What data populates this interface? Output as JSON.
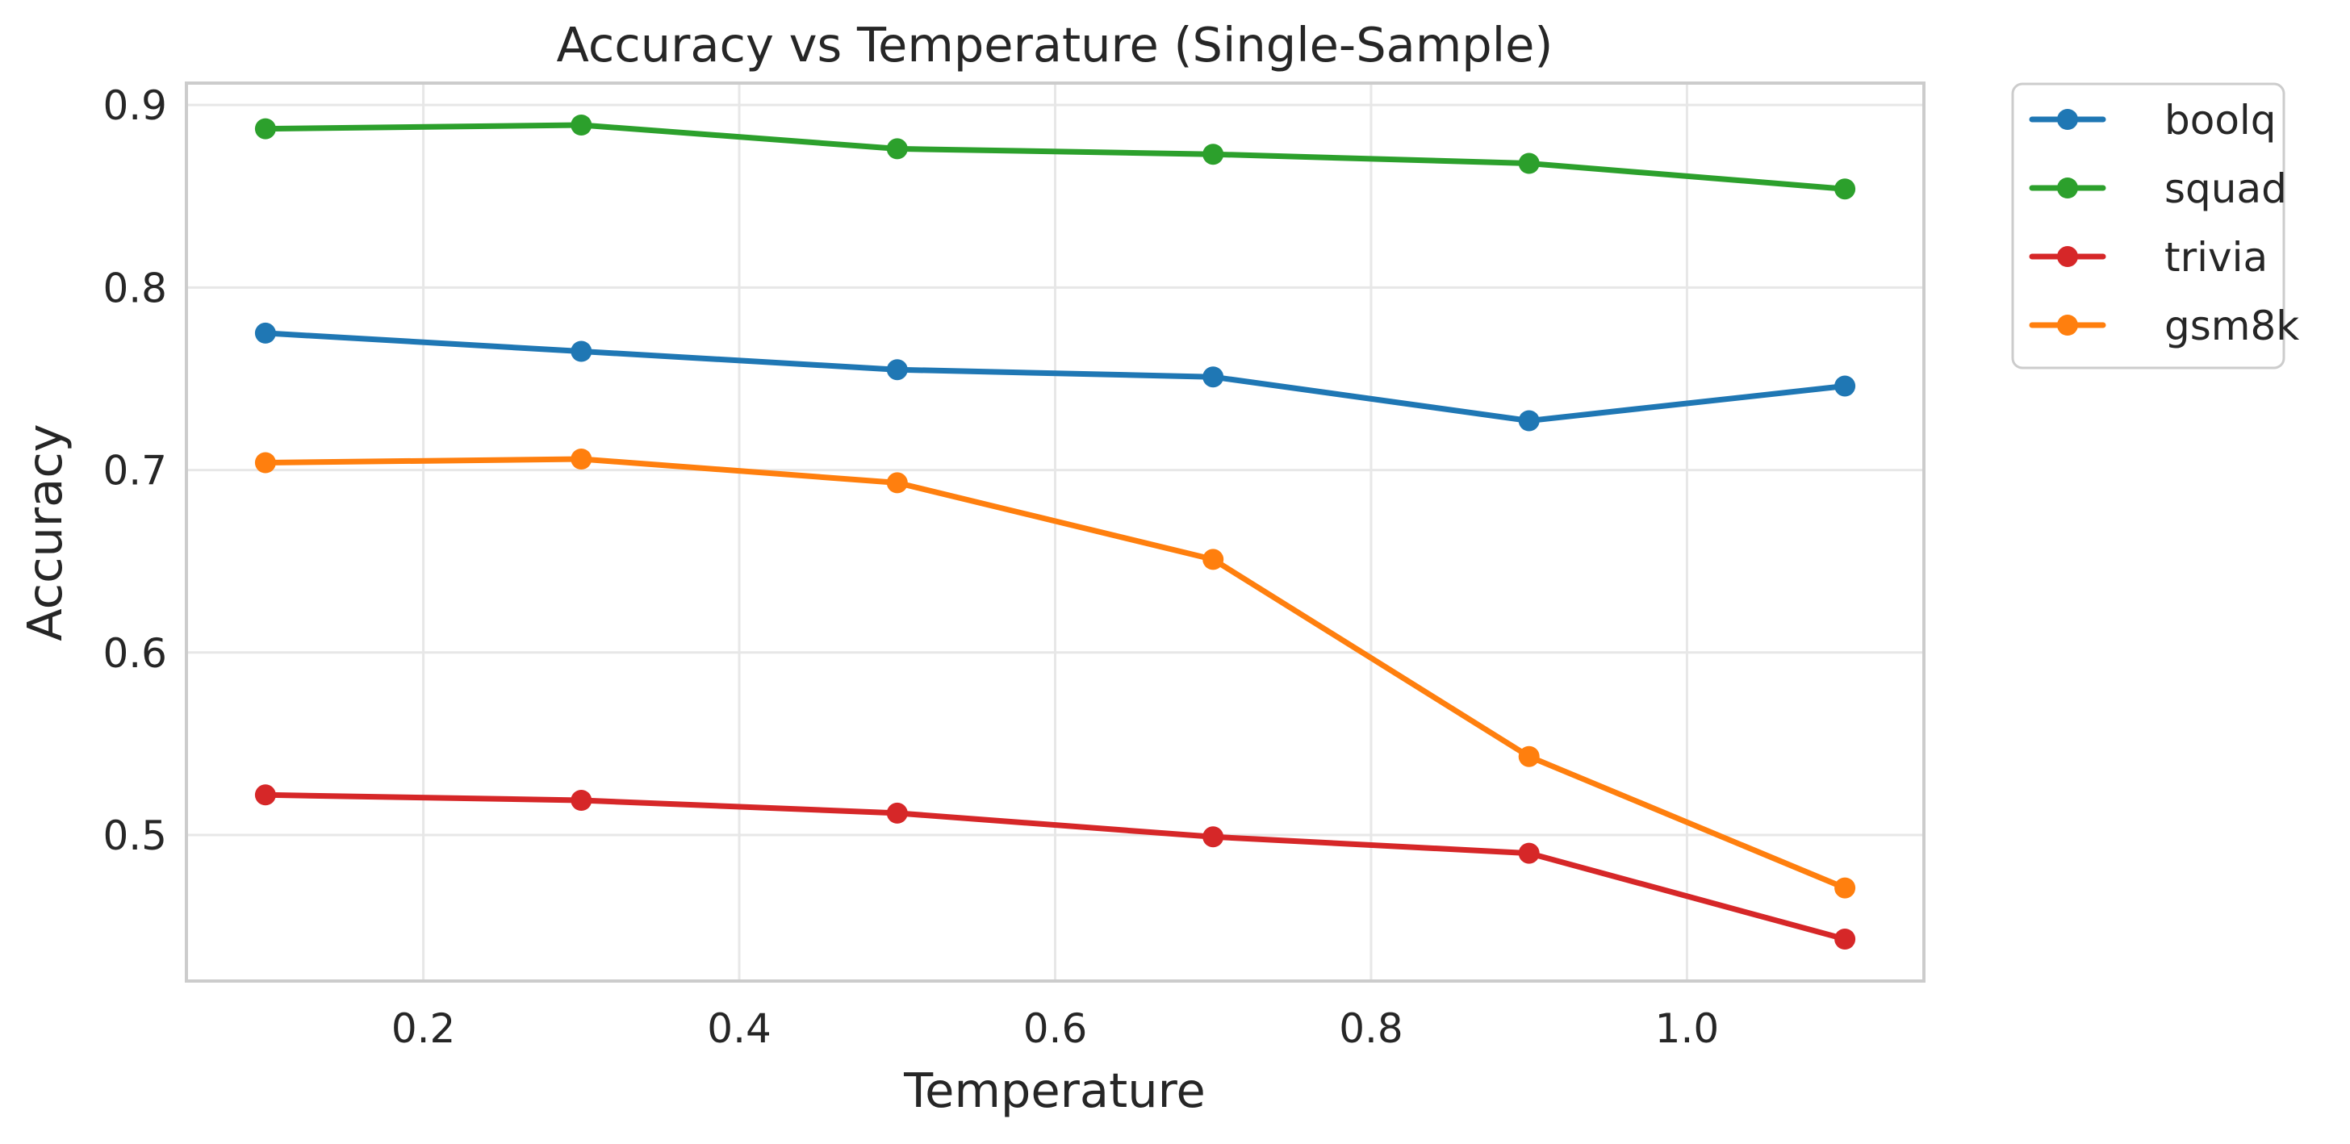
{
  "chart_data": {
    "type": "line",
    "title": "Accuracy vs Temperature (Single-Sample)",
    "xlabel": "Temperature",
    "ylabel": "Accuracy",
    "x": [
      0.1,
      0.3,
      0.5,
      0.7,
      0.9,
      1.1
    ],
    "xlim": [
      0.05,
      1.15
    ],
    "ylim": [
      0.42,
      0.912
    ],
    "xticks": [
      0.2,
      0.4,
      0.6,
      0.8,
      1.0
    ],
    "xtick_labels": [
      "0.2",
      "0.4",
      "0.6",
      "0.8",
      "1.0"
    ],
    "yticks": [
      0.5,
      0.6,
      0.7,
      0.8,
      0.9
    ],
    "ytick_labels": [
      "0.5",
      "0.6",
      "0.7",
      "0.8",
      "0.9"
    ],
    "grid": true,
    "legend_position": "outside-top-right",
    "series": [
      {
        "name": "boolq",
        "color": "#1f77b4",
        "values": [
          0.775,
          0.765,
          0.755,
          0.751,
          0.727,
          0.746
        ]
      },
      {
        "name": "squad",
        "color": "#2ca02c",
        "values": [
          0.887,
          0.889,
          0.876,
          0.873,
          0.868,
          0.854
        ]
      },
      {
        "name": "trivia",
        "color": "#d62728",
        "values": [
          0.522,
          0.519,
          0.512,
          0.499,
          0.49,
          0.443
        ]
      },
      {
        "name": "gsm8k",
        "color": "#ff7f0e",
        "values": [
          0.704,
          0.706,
          0.693,
          0.651,
          0.543,
          0.471
        ]
      }
    ]
  }
}
